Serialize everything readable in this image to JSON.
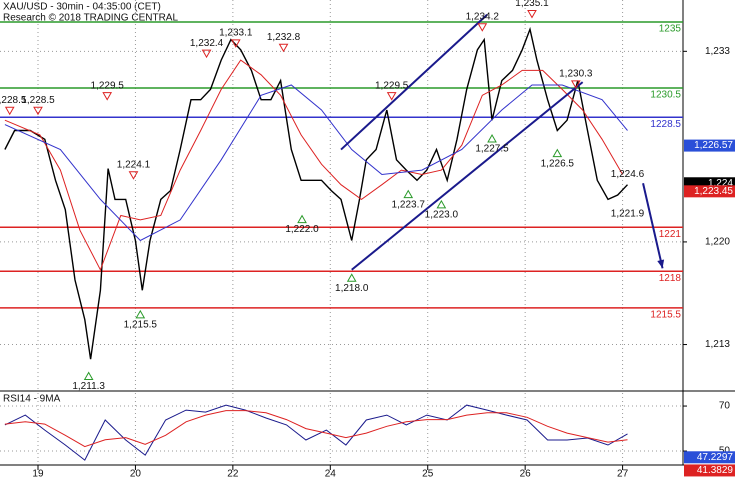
{
  "chart_data": [
    {
      "type": "line",
      "title": "XAU/USD - 30min - 04:35:00 (CET)",
      "subtitle": "Research © 2018 TRADING CENTRAL",
      "xlim": [
        -0.39,
        6.62
      ],
      "ylim": [
        1209.9,
        1236.5
      ],
      "yticks": [
        {
          "value": 1233,
          "label": "1,233"
        },
        {
          "value": 1220,
          "label": "1,220"
        },
        {
          "value": 1213,
          "label": "1,213"
        }
      ],
      "grid": true,
      "x": [
        -0.34,
        -0.24,
        -0.08,
        0.07,
        0.18,
        0.28,
        0.38,
        0.48,
        0.54,
        0.64,
        0.72,
        0.79,
        0.9,
        1.0,
        1.07,
        1.15,
        1.26,
        1.36,
        1.46,
        1.57,
        1.67,
        1.77,
        1.88,
        1.98,
        2.08,
        2.19,
        2.29,
        2.39,
        2.49,
        2.6,
        2.7,
        2.8,
        2.91,
        3.01,
        3.11,
        3.22,
        3.3,
        3.37,
        3.47,
        3.58,
        3.68,
        3.78,
        3.89,
        3.99,
        4.09,
        4.2,
        4.3,
        4.4,
        4.51,
        4.58,
        4.66,
        4.76,
        4.87,
        4.97,
        5.05,
        5.12,
        5.23,
        5.33,
        5.43,
        5.54,
        5.64,
        5.74,
        5.85,
        5.95,
        6.05
      ],
      "series": [
        {
          "color": "#000000",
          "values": [
            1226.3,
            1227.6,
            1227.6,
            1227.0,
            1224.2,
            1222.2,
            1217.4,
            1214.7,
            1212.0,
            1216.7,
            1225.0,
            1222.9,
            1222.9,
            1220.1,
            1216.7,
            1220.1,
            1222.9,
            1223.5,
            1226.3,
            1229.7,
            1229.7,
            1230.4,
            1232.4,
            1233.8,
            1233.1,
            1231.7,
            1229.7,
            1229.7,
            1231.0,
            1226.3,
            1224.2,
            1224.2,
            1224.2,
            1223.5,
            1222.9,
            1220.1,
            1222.9,
            1225.6,
            1226.3,
            1229.0,
            1225.6,
            1224.9,
            1224.2,
            1224.9,
            1226.3,
            1224.2,
            1227.0,
            1230.4,
            1233.1,
            1233.8,
            1228.3,
            1231.0,
            1231.7,
            1233.1,
            1234.5,
            1232.4,
            1229.7,
            1227.6,
            1228.3,
            1231.0,
            1227.6,
            1224.2,
            1222.9,
            1223.2,
            1223.9
          ]
        },
        {
          "color": "#dd2222",
          "x": [
            -0.34,
            0.02,
            0.23,
            0.43,
            0.64,
            0.85,
            1.05,
            1.26,
            1.46,
            1.67,
            1.88,
            2.08,
            2.29,
            2.49,
            2.7,
            2.91,
            3.11,
            3.32,
            3.53,
            3.73,
            3.94,
            4.14,
            4.35,
            4.56,
            4.76,
            4.97,
            5.18,
            5.38,
            5.59,
            5.79,
            6.0
          ],
          "values": [
            1228.3,
            1227.3,
            1224.9,
            1220.8,
            1218.1,
            1221.8,
            1221.5,
            1221.8,
            1224.9,
            1227.6,
            1230.4,
            1232.4,
            1231.4,
            1230.0,
            1227.3,
            1225.3,
            1223.9,
            1222.9,
            1223.9,
            1224.9,
            1224.6,
            1224.9,
            1226.6,
            1230.0,
            1230.7,
            1231.7,
            1231.7,
            1230.4,
            1229.0,
            1227.0,
            1224.6
          ]
        },
        {
          "color": "#3333cc",
          "x": [
            -0.34,
            0.23,
            0.64,
            1.05,
            1.46,
            1.88,
            2.29,
            2.6,
            2.91,
            3.22,
            3.53,
            3.94,
            4.35,
            4.76,
            5.07,
            5.38,
            5.79,
            6.05
          ],
          "values": [
            1228.0,
            1226.3,
            1222.9,
            1220.1,
            1221.5,
            1225.6,
            1230.0,
            1230.7,
            1229.0,
            1226.3,
            1224.6,
            1224.9,
            1226.3,
            1229.0,
            1230.7,
            1230.7,
            1229.7,
            1227.6
          ]
        }
      ],
      "levels": [
        {
          "value": 1235,
          "color": "#2a9a2a"
        },
        {
          "value": 1230.5,
          "color": "#2a9a2a"
        },
        {
          "value": 1228.5,
          "color": "#3333cc"
        },
        {
          "value": 1221,
          "color": "#dd2222"
        },
        {
          "value": 1218,
          "color": "#dd2222"
        },
        {
          "value": 1215.5,
          "color": "#dd2222"
        }
      ],
      "trendlines": [
        {
          "color": "#1a1a8c",
          "x": [
            3.11,
            4.61
          ],
          "values": [
            1226.3,
            1235.5
          ]
        },
        {
          "color": "#1a1a8c",
          "x": [
            3.22,
            5.59
          ],
          "values": [
            1218.1,
            1230.9
          ]
        },
        {
          "color": "#1a1a8c",
          "x": [
            6.21,
            6.41
          ],
          "values": [
            1224.0,
            1218.2
          ],
          "arrow": true
        }
      ],
      "price_labels": [
        {
          "value": 1226.57,
          "label": "1,226.57",
          "color": "#2a4fd8"
        },
        {
          "value": 1224,
          "label": "1,224",
          "color": "#000000"
        },
        {
          "value": 1223.45,
          "label": "1,223.45",
          "color": "#dd2222"
        }
      ],
      "annotations": [
        {
          "x": -0.29,
          "value": 1228.5,
          "label": "1,228.5",
          "kind": "high"
        },
        {
          "x": 0.0,
          "value": 1228.5,
          "label": "1,228.5",
          "kind": "high"
        },
        {
          "x": 0.71,
          "value": 1229.5,
          "label": "1,229.5",
          "kind": "high"
        },
        {
          "x": 0.98,
          "value": 1224.1,
          "label": "1,224.1",
          "kind": "high"
        },
        {
          "x": 1.73,
          "value": 1232.4,
          "label": "1,232.4",
          "kind": "high"
        },
        {
          "x": 2.03,
          "value": 1233.1,
          "label": "1,233.1",
          "kind": "high"
        },
        {
          "x": 2.52,
          "value": 1232.8,
          "label": "1,232.8",
          "kind": "high"
        },
        {
          "x": 3.63,
          "value": 1229.5,
          "label": "1,229.5",
          "kind": "high"
        },
        {
          "x": 4.56,
          "value": 1234.2,
          "label": "1,234.2",
          "kind": "high"
        },
        {
          "x": 5.07,
          "value": 1235.1,
          "label": "1,235.1",
          "kind": "high"
        },
        {
          "x": 5.52,
          "value": 1230.3,
          "label": "1,230.3",
          "kind": "high"
        },
        {
          "x": 0.52,
          "value": 1211.3,
          "label": "1,211.3",
          "kind": "low"
        },
        {
          "x": 1.05,
          "value": 1215.5,
          "label": "1,215.5",
          "kind": "low"
        },
        {
          "x": 2.71,
          "value": 1222.0,
          "label": "1,222.0",
          "kind": "low"
        },
        {
          "x": 3.22,
          "value": 1218.0,
          "label": "1,218.0",
          "kind": "low"
        },
        {
          "x": 3.8,
          "value": 1223.7,
          "label": "1,223.7",
          "kind": "low"
        },
        {
          "x": 4.14,
          "value": 1223.0,
          "label": "1,223.0",
          "kind": "low"
        },
        {
          "x": 4.66,
          "value": 1227.5,
          "label": "1,227.5",
          "kind": "low"
        },
        {
          "x": 5.33,
          "value": 1226.5,
          "label": "1,226.5",
          "kind": "low"
        },
        {
          "x": 6.05,
          "value": 1224.6,
          "label": "1,224.6",
          "kind": "note"
        },
        {
          "x": 6.05,
          "value": 1221.9,
          "label": "1,221.9",
          "kind": "note"
        }
      ]
    },
    {
      "type": "line",
      "title": "RSI14 - 9MA",
      "xlim": [
        -0.39,
        6.62
      ],
      "ylim": [
        43.8,
        75.8
      ],
      "yticks": [
        70,
        50
      ],
      "grid": true,
      "xticks": [
        {
          "value": 0,
          "label": "19"
        },
        {
          "value": 1,
          "label": "20"
        },
        {
          "value": 2,
          "label": "22"
        },
        {
          "value": 3,
          "label": "24"
        },
        {
          "value": 4,
          "label": "25"
        },
        {
          "value": 5,
          "label": "26"
        },
        {
          "value": 6,
          "label": "27"
        }
      ],
      "x": [
        -0.34,
        -0.13,
        0.07,
        0.28,
        0.48,
        0.69,
        0.9,
        1.1,
        1.31,
        1.52,
        1.72,
        1.93,
        2.13,
        2.34,
        2.55,
        2.75,
        2.96,
        3.16,
        3.37,
        3.58,
        3.78,
        3.99,
        4.2,
        4.4,
        4.61,
        4.81,
        5.02,
        5.23,
        5.43,
        5.64,
        5.85,
        6.05
      ],
      "series": [
        {
          "color": "#1a1a8c",
          "values": [
            61.6,
            66.0,
            59.3,
            52.7,
            46.0,
            63.8,
            54.9,
            48.2,
            63.8,
            68.2,
            67.3,
            70.4,
            68.2,
            64.7,
            61.6,
            54.9,
            59.3,
            52.7,
            63.8,
            66.0,
            61.6,
            66.0,
            63.8,
            70.4,
            68.2,
            66.0,
            63.8,
            54.9,
            54.9,
            55.8,
            52.7,
            57.6
          ]
        },
        {
          "color": "#dd2222",
          "values": [
            62,
            63,
            62,
            57,
            52,
            55,
            56,
            53,
            57,
            63,
            66,
            68,
            68,
            67,
            64,
            60,
            58,
            56,
            58,
            61,
            63,
            64,
            64,
            66,
            67,
            67,
            65,
            61,
            58,
            56,
            54,
            55
          ]
        }
      ],
      "price_labels": [
        {
          "value": 47.2297,
          "color": "#2a4fd8"
        },
        {
          "value": 41.3829,
          "color": "#dd2222"
        }
      ]
    }
  ]
}
